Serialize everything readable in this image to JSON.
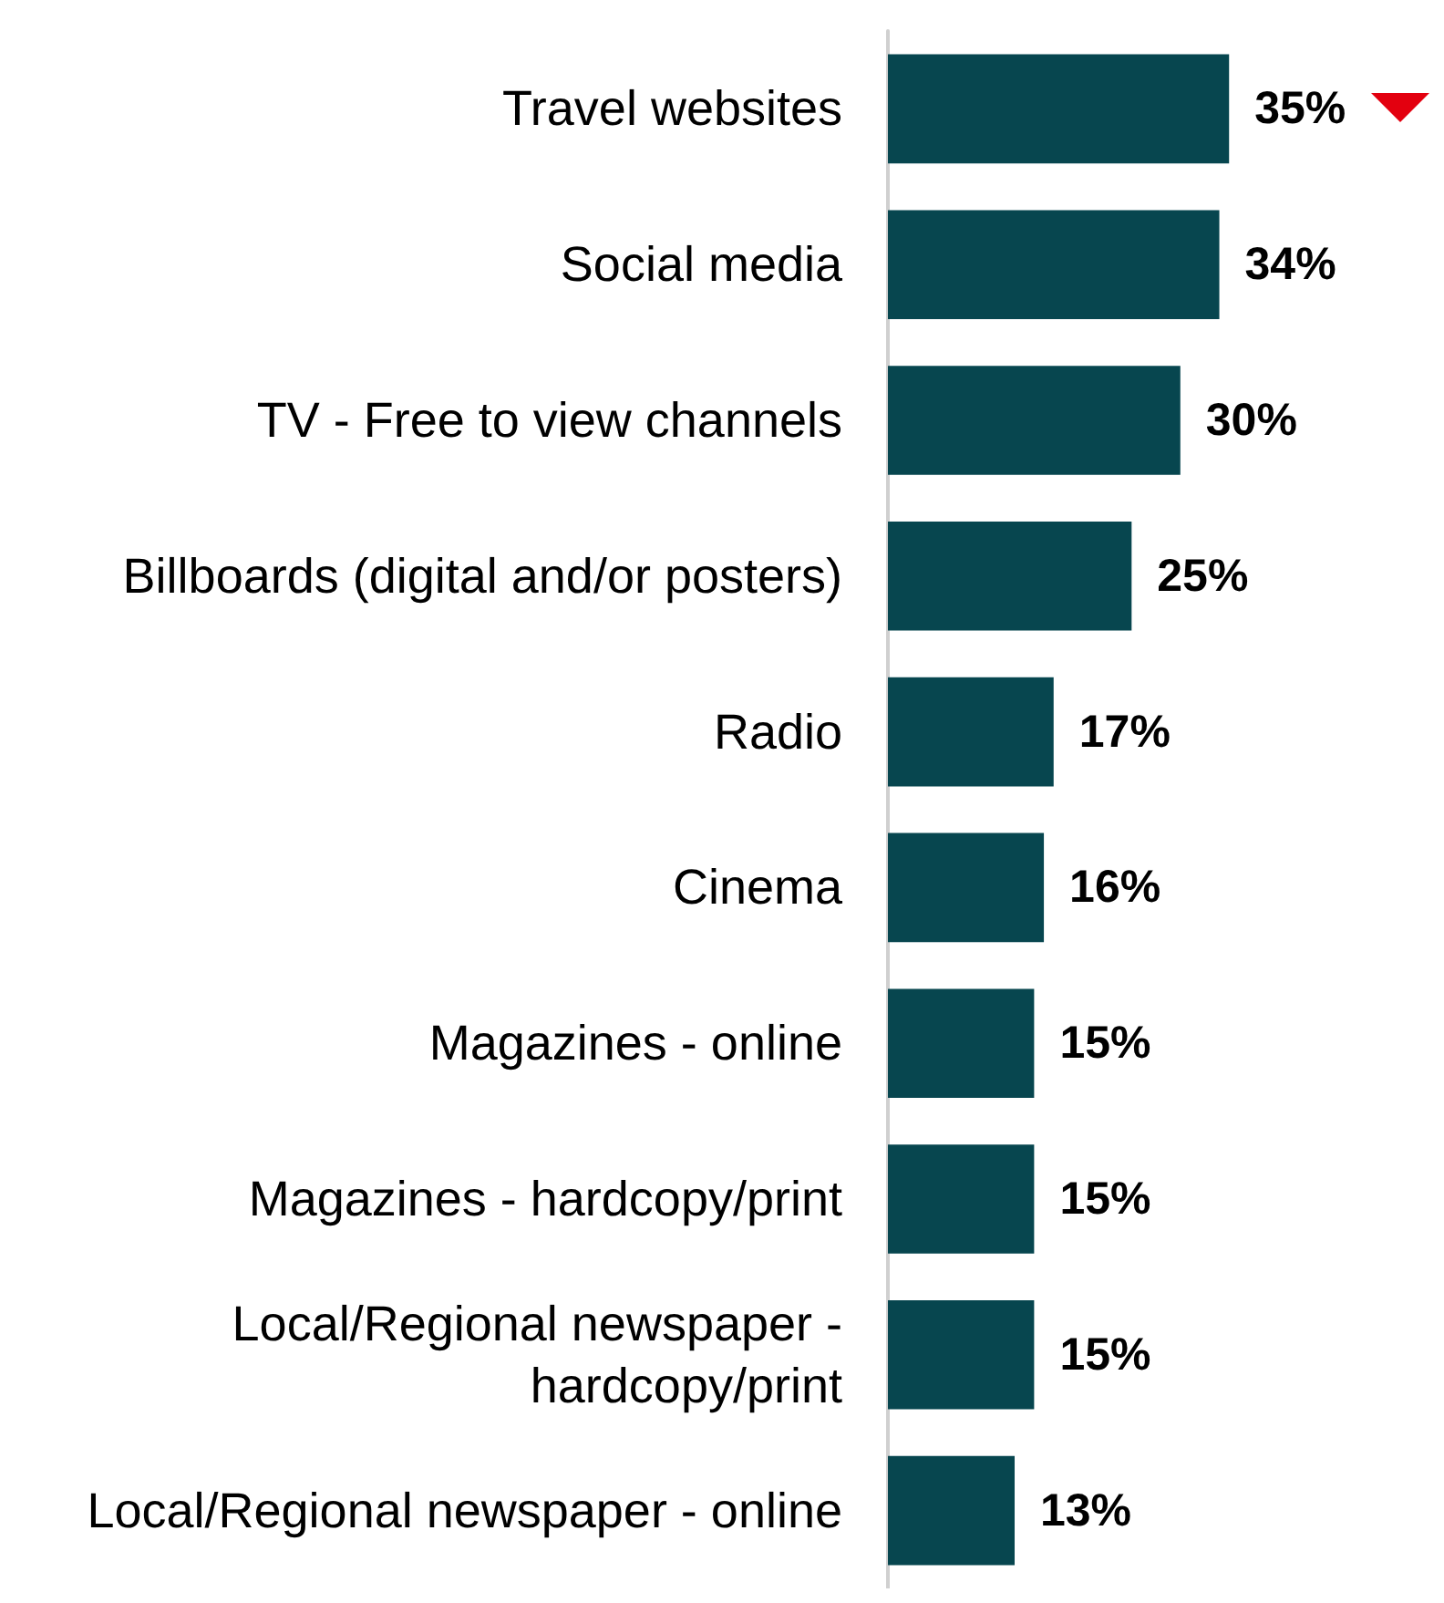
{
  "chart_data": {
    "type": "bar",
    "orientation": "horizontal",
    "value_labels": [
      "35%",
      "34%",
      "30%",
      "25%",
      "17%",
      "16%",
      "15%",
      "15%",
      "15%",
      "13%"
    ],
    "color": "#07464f",
    "categories": [
      "Travel websites",
      "Social media",
      "TV - Free to view channels",
      "Billboards (digital and/or posters)",
      "Radio",
      "Cinema",
      "Magazines - online",
      "Magazines - hardcopy/print",
      "Local/Regional newspaper - hardcopy/print",
      "Local/Regional newspaper - online"
    ],
    "values": [
      35,
      34,
      30,
      25,
      17,
      16,
      15,
      15,
      15,
      13
    ]
  }
}
